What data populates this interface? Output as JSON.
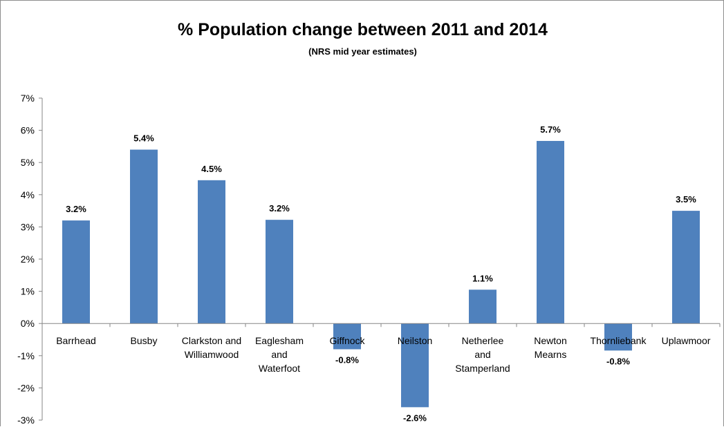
{
  "chart_data": {
    "type": "bar",
    "title": "% Population change between 2011 and 2014",
    "subtitle": "(NRS mid year estimates)",
    "categories": [
      [
        "Barrhead"
      ],
      [
        "Busby"
      ],
      [
        "Clarkston and",
        "Williamwood"
      ],
      [
        "Eaglesham",
        "and",
        "Waterfoot"
      ],
      [
        "Giffnock"
      ],
      [
        "Neilston"
      ],
      [
        "Netherlee",
        "and",
        "Stamperland"
      ],
      [
        "Newton",
        "Mearns"
      ],
      [
        "Thornliebank"
      ],
      [
        "Uplawmoor"
      ]
    ],
    "values": [
      3.2,
      5.4,
      4.45,
      3.22,
      -0.8,
      -2.6,
      1.05,
      5.67,
      -0.84,
      3.5
    ],
    "data_labels": [
      "3.2%",
      "5.4%",
      "4.5%",
      "3.2%",
      "-0.8%",
      "-2.6%",
      "1.1%",
      "5.7%",
      "-0.8%",
      "3.5%"
    ],
    "ylim": [
      -3,
      7
    ],
    "yticks": [
      7,
      6,
      5,
      4,
      3,
      2,
      1,
      0,
      -1,
      -2,
      -3
    ],
    "ytick_labels": [
      "7%",
      "6%",
      "5%",
      "4%",
      "3%",
      "2%",
      "1%",
      "0%",
      "-1%",
      "-2%",
      "-3%"
    ],
    "grid": false,
    "legend": "none",
    "bar_color": "#4f81bd"
  }
}
